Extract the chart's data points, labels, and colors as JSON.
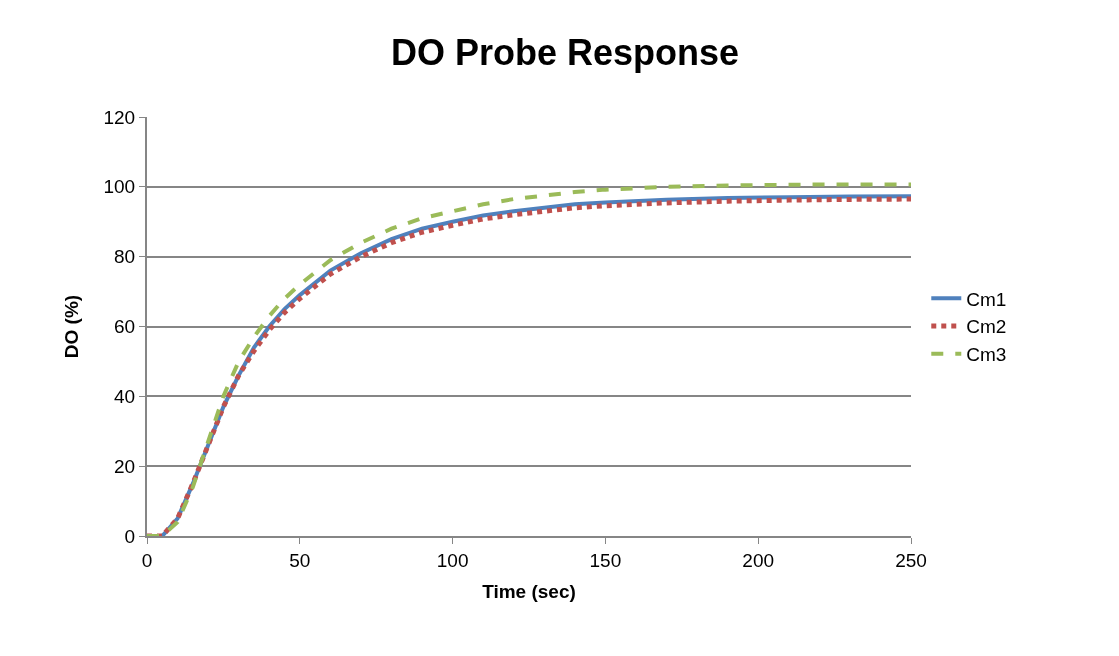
{
  "chart_data": {
    "type": "line",
    "title": "DO Probe Response",
    "xlabel": "Time (sec)",
    "ylabel": "DO (%)",
    "xlim": [
      0,
      250
    ],
    "xticks": [
      0,
      50,
      100,
      150,
      200,
      250
    ],
    "ylim": [
      0,
      120
    ],
    "yticks": [
      0,
      20,
      40,
      60,
      80,
      100,
      120
    ],
    "grid": "y",
    "legend": "right",
    "marker": "none",
    "x": [
      0,
      5,
      10,
      15,
      20,
      25,
      30,
      35,
      40,
      45,
      50,
      60,
      70,
      80,
      90,
      100,
      110,
      120,
      130,
      140,
      150,
      170,
      190,
      210,
      230,
      250
    ],
    "series": [
      {
        "name": "Cm1",
        "color": "#4f81bd",
        "line_style": "solid",
        "values": [
          0,
          0,
          5,
          15,
          26,
          37,
          46,
          54,
          60,
          65,
          69,
          76,
          81,
          85,
          88,
          90,
          91.8,
          93,
          94,
          95,
          95.5,
          96.3,
          96.8,
          97,
          97.2,
          97.3
        ]
      },
      {
        "name": "Cm2",
        "color": "#c0504d",
        "line_style": "dotted",
        "values": [
          0,
          0,
          5,
          15,
          26,
          37,
          46,
          53,
          59,
          64,
          68,
          75,
          80,
          84,
          87,
          89,
          90.8,
          92,
          93,
          94,
          94.6,
          95.4,
          95.9,
          96.2,
          96.4,
          96.5
        ]
      },
      {
        "name": "Cm3",
        "color": "#9bbb59",
        "line_style": "dashed",
        "values": [
          0,
          0,
          4,
          14,
          27,
          40,
          50,
          57,
          63,
          68,
          72,
          79,
          84,
          88,
          91,
          93,
          95,
          96.5,
          97.5,
          98.5,
          99.2,
          100,
          100.4,
          100.6,
          100.7,
          100.7
        ]
      }
    ]
  }
}
